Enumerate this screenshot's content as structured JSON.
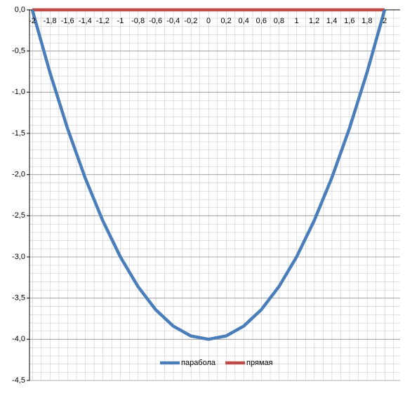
{
  "chart_data": {
    "type": "line",
    "categories": [
      "-2",
      "-1,8",
      "-1,6",
      "-1,4",
      "-1,2",
      "-1",
      "-0,8",
      "-0,6",
      "-0,4",
      "-0,2",
      "0",
      "0,2",
      "0,4",
      "0,6",
      "0,8",
      "1",
      "1,2",
      "1,4",
      "1,6",
      "1,8",
      "2"
    ],
    "series": [
      {
        "name": "парабола",
        "color": "#4a7ebb",
        "values": [
          0,
          -0.76,
          -1.44,
          -2.04,
          -2.56,
          -3,
          -3.36,
          -3.64,
          -3.84,
          -3.96,
          -4,
          -3.96,
          -3.84,
          -3.64,
          -3.36,
          -3,
          -2.56,
          -2.04,
          -1.44,
          -0.76,
          0
        ]
      },
      {
        "name": "прямая",
        "color": "#be4b48",
        "values": [
          0,
          0,
          0,
          0,
          0,
          0,
          0,
          0,
          0,
          0,
          0,
          0,
          0,
          0,
          0,
          0,
          0,
          0,
          0,
          0,
          0
        ]
      }
    ],
    "ylim": [
      -4.5,
      0
    ],
    "yticks": [
      {
        "value": 0,
        "label": "0,0"
      },
      {
        "value": -0.5,
        "label": "-0,5"
      },
      {
        "value": -1,
        "label": "-1,0"
      },
      {
        "value": -1.5,
        "label": "-1,5"
      },
      {
        "value": -2,
        "label": "-2,0"
      },
      {
        "value": -2.5,
        "label": "-2,5"
      },
      {
        "value": -3,
        "label": "-3,0"
      },
      {
        "value": -3.5,
        "label": "-3,5"
      },
      {
        "value": -4,
        "label": "-4,0"
      },
      {
        "value": -4.5,
        "label": "-4,5"
      }
    ],
    "grid": true
  }
}
